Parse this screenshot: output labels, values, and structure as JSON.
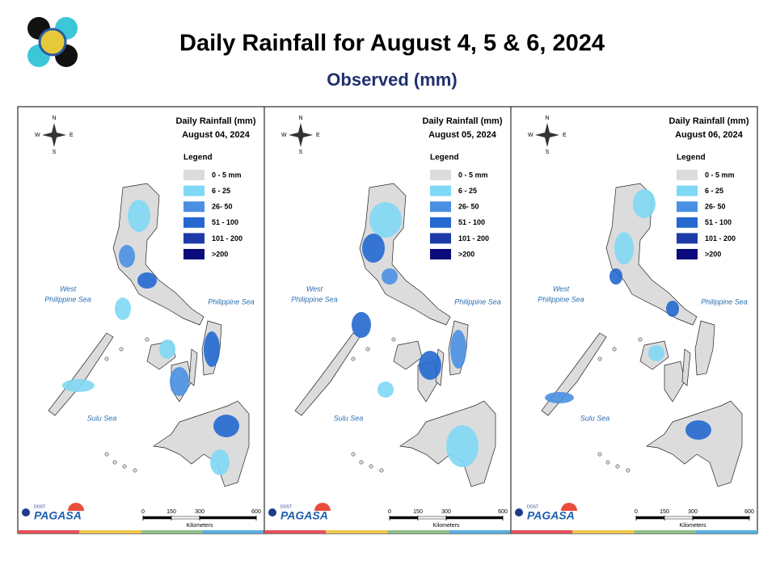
{
  "header": {
    "title": "Daily Rainfall for August 4, 5 & 6, 2024",
    "subtitle": "Observed (mm)"
  },
  "panels": [
    {
      "heading": "Daily Rainfall (mm)",
      "date": "August 04, 2024"
    },
    {
      "heading": "Daily Rainfall (mm)",
      "date": "August 05, 2024"
    },
    {
      "heading": "Daily Rainfall (mm)",
      "date": "August 06, 2024"
    }
  ],
  "legend": {
    "title": "Legend",
    "items": [
      {
        "label": "0 - 5 mm",
        "color": "#dcdcdc"
      },
      {
        "label": "6 - 25",
        "color": "#7fd8f5"
      },
      {
        "label": "26- 50",
        "color": "#4a90e2"
      },
      {
        "label": "51 - 100",
        "color": "#2468d0"
      },
      {
        "label": "101 - 200",
        "color": "#1c3aa8"
      },
      {
        "label": ">200",
        "color": "#0a0a7a"
      }
    ]
  },
  "seas": {
    "west": [
      "West",
      "Philippine Sea"
    ],
    "east": "Philippine Sea",
    "south": "Sulu Sea"
  },
  "compass": {
    "n": "N",
    "s": "S",
    "e": "E",
    "w": "W"
  },
  "scale": {
    "ticks": [
      0,
      150,
      300,
      600
    ],
    "unit": "Kilometers"
  },
  "agency": {
    "name": "PAGASA",
    "parent": "DOST"
  }
}
